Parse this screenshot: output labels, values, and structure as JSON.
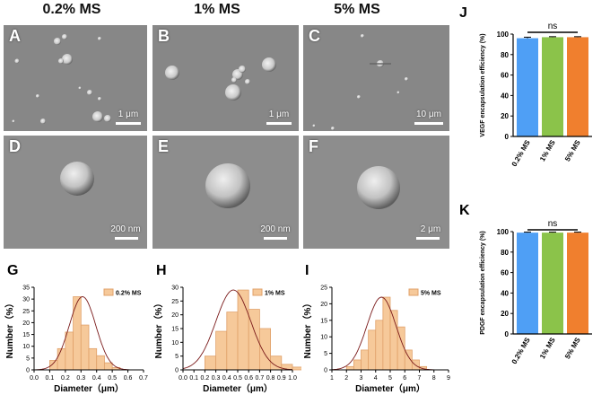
{
  "columns": [
    "0.2% MS",
    "1% MS",
    "5% MS"
  ],
  "sem_panels": [
    {
      "label": "A",
      "scale": "1 μm"
    },
    {
      "label": "B",
      "scale": "1 μm"
    },
    {
      "label": "C",
      "scale": "10 μm"
    },
    {
      "label": "D",
      "scale": "200 nm"
    },
    {
      "label": "E",
      "scale": "200 nm"
    },
    {
      "label": "F",
      "scale": "2 μm"
    }
  ],
  "colors": {
    "bar_fill": "#f6c99a",
    "bar_edge": "#e0a16a",
    "fit_curve": "#7a1a1a",
    "blue": "#4f9ff5",
    "green": "#8bc34a",
    "orange": "#f07f2e"
  },
  "chart_data": [
    {
      "type": "bar",
      "panel": "G",
      "legend": "0.2% MS",
      "xlabel": "Diameter（μm）",
      "ylabel": "Number（%）",
      "xlim": [
        0,
        0.7
      ],
      "ylim": [
        0,
        35
      ],
      "xticks": [
        "0.0",
        "0.1",
        "0.2",
        "0.3",
        "0.4",
        "0.5",
        "0.6",
        "0.7"
      ],
      "yticks": [
        "0",
        "5",
        "10",
        "15",
        "20",
        "25",
        "30",
        "35"
      ],
      "bin_start": 0.1,
      "bin_width": 0.05,
      "values": [
        4,
        9,
        16,
        31,
        19,
        9,
        6,
        3,
        1
      ],
      "fit": {
        "mean": 0.31,
        "sd": 0.085,
        "peak": 31
      }
    },
    {
      "type": "bar",
      "panel": "H",
      "legend": "1% MS",
      "xlabel": "Diameter（μm）",
      "ylabel": "Number（%）",
      "xlim": [
        0,
        1.0
      ],
      "ylim": [
        0,
        30
      ],
      "xticks": [
        "0.0",
        "0.1",
        "0.2",
        "0.3",
        "0.4",
        "0.5",
        "0.6",
        "0.7",
        "0.8",
        "0.9",
        "1.0"
      ],
      "yticks": [
        "0",
        "5",
        "10",
        "15",
        "20",
        "25",
        "30"
      ],
      "bin_start": 0.2,
      "bin_width": 0.1,
      "values": [
        5,
        14,
        21,
        29,
        22,
        15,
        5,
        2,
        1
      ],
      "fit": {
        "mean": 0.46,
        "sd": 0.16,
        "peak": 29
      }
    },
    {
      "type": "bar",
      "panel": "I",
      "legend": "5% MS",
      "xlabel": "Diameter（μm）",
      "ylabel": "Number（%）",
      "xlim": [
        1,
        9
      ],
      "ylim": [
        0,
        25
      ],
      "xticks": [
        "1",
        "2",
        "3",
        "4",
        "5",
        "6",
        "7",
        "8",
        "9"
      ],
      "yticks": [
        "0",
        "5",
        "10",
        "15",
        "20",
        "25"
      ],
      "bin_start": 2.0,
      "bin_width": 0.5,
      "values": [
        1,
        3,
        6,
        12,
        15,
        22,
        18,
        13,
        6,
        3,
        1
      ],
      "fit": {
        "mean": 4.4,
        "sd": 1.0,
        "peak": 22
      }
    },
    {
      "type": "bar",
      "panel": "J",
      "ylabel": "VEGF encapsulation efficiency (%)",
      "categories": [
        "0.2% MS",
        "1% MS",
        "5% MS"
      ],
      "values": [
        96,
        97,
        97
      ],
      "errors": [
        1,
        0.5,
        0.5
      ],
      "ylim": [
        0,
        100
      ],
      "yticks": [
        "0",
        "20",
        "40",
        "60",
        "80",
        "100"
      ],
      "annotation": "ns"
    },
    {
      "type": "bar",
      "panel": "K",
      "ylabel": "PDGF encapsulation efficiency (%)",
      "categories": [
        "0.2% MS",
        "1% MS",
        "5% MS"
      ],
      "values": [
        99,
        99,
        99
      ],
      "errors": [
        0.5,
        0.5,
        0.5
      ],
      "ylim": [
        0,
        100
      ],
      "yticks": [
        "0",
        "20",
        "40",
        "60",
        "80",
        "100"
      ],
      "annotation": "ns"
    }
  ],
  "panel_labels": {
    "G": "G",
    "H": "H",
    "I": "I",
    "J": "J",
    "K": "K"
  }
}
